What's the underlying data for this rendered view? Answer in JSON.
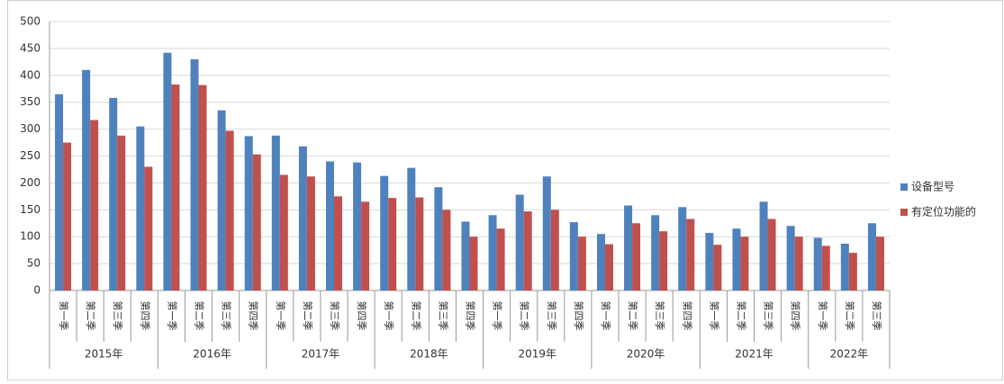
{
  "chart_data": {
    "type": "bar",
    "categories": [
      "第一季",
      "第二季",
      "第三季",
      "第四季",
      "第一季",
      "第二季",
      "第三季",
      "第四季",
      "第一季",
      "第二季",
      "第三季",
      "第四季",
      "第一季",
      "第二季",
      "第三季",
      "第四季",
      "第一季",
      "第二季",
      "第三季",
      "第四季",
      "第一季",
      "第二季",
      "第三季",
      "第四季",
      "第一季",
      "第二季",
      "第三季",
      "第四季",
      "第一季",
      "第二季",
      "第三季"
    ],
    "category_groups": [
      {
        "name": "2015年",
        "count": 4
      },
      {
        "name": "2016年",
        "count": 4
      },
      {
        "name": "2017年",
        "count": 4
      },
      {
        "name": "2018年",
        "count": 4
      },
      {
        "name": "2019年",
        "count": 4
      },
      {
        "name": "2020年",
        "count": 4
      },
      {
        "name": "2021年",
        "count": 4
      },
      {
        "name": "2022年",
        "count": 3
      }
    ],
    "series": [
      {
        "name": "设备型号",
        "color": "#4f81bd",
        "values": [
          365,
          410,
          358,
          305,
          442,
          430,
          335,
          287,
          288,
          268,
          240,
          238,
          213,
          228,
          192,
          128,
          140,
          178,
          212,
          127,
          105,
          158,
          140,
          155,
          107,
          115,
          165,
          120,
          98,
          87,
          125
        ]
      },
      {
        "name": "有定位功能的",
        "color": "#c0504d",
        "values": [
          275,
          317,
          288,
          230,
          383,
          382,
          297,
          253,
          215,
          212,
          175,
          165,
          172,
          173,
          150,
          100,
          115,
          147,
          150,
          100,
          86,
          125,
          110,
          133,
          85,
          100,
          133,
          100,
          83,
          70,
          100
        ]
      }
    ],
    "ylim": [
      0,
      500
    ],
    "yticks": [
      0,
      50,
      100,
      150,
      200,
      250,
      300,
      350,
      400,
      450,
      500
    ],
    "grid": true,
    "legend": "right"
  }
}
